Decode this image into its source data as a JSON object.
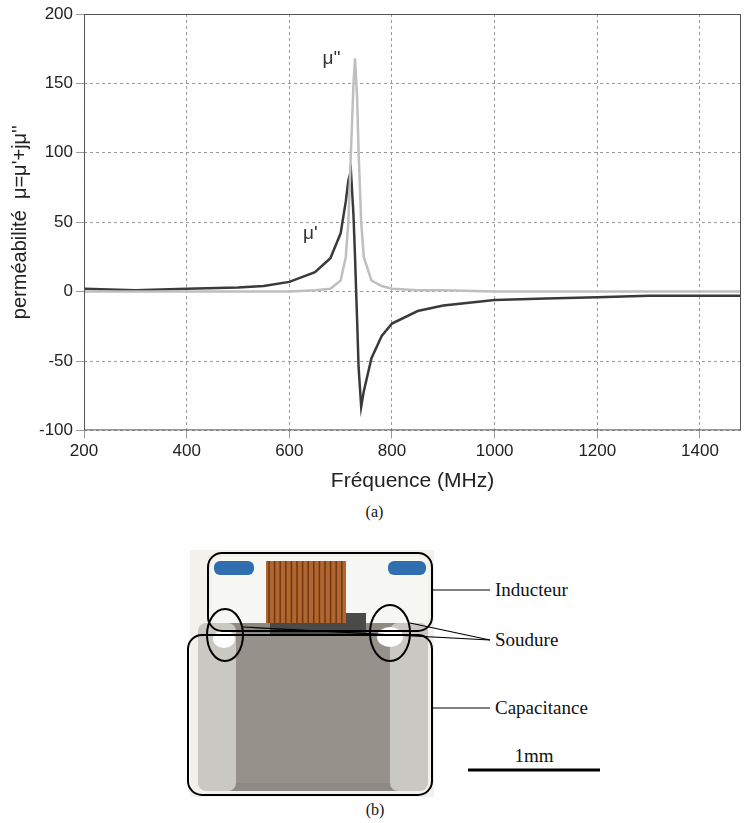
{
  "chart_data": {
    "type": "line",
    "panel_label": "(a)",
    "x_label": "Fréquence (MHz)",
    "y_label": "perméabilité  μ=μ'+jμ''",
    "x": [
      200,
      300,
      400,
      500,
      550,
      600,
      650,
      680,
      700,
      710,
      715,
      720,
      725,
      728,
      732,
      735,
      740,
      745,
      760,
      780,
      800,
      850,
      900,
      1000,
      1100,
      1200,
      1300,
      1400,
      1480
    ],
    "series": [
      {
        "name": "μ'",
        "color": "#3a3a3a",
        "values": [
          2,
          1,
          2,
          3,
          4,
          7,
          14,
          24,
          42,
          65,
          80,
          87,
          55,
          25,
          -20,
          -55,
          -83,
          -72,
          -48,
          -32,
          -23,
          -14,
          -10,
          -6,
          -5,
          -4,
          -3,
          -3,
          -3
        ]
      },
      {
        "name": "μ''",
        "color": "#bfbfbf",
        "values": [
          0,
          0,
          0,
          0,
          0,
          0,
          1,
          2,
          8,
          25,
          50,
          100,
          150,
          168,
          140,
          100,
          50,
          25,
          8,
          4,
          2,
          1,
          1,
          0,
          0,
          0,
          0,
          0,
          0
        ]
      }
    ],
    "annotations": [
      {
        "text": "μ''",
        "x": 700,
        "y": 168
      },
      {
        "text": "μ'",
        "x": 655,
        "y": 42
      }
    ],
    "xlim": [
      200,
      1480
    ],
    "xticks": [
      200,
      400,
      600,
      800,
      1000,
      1200,
      1400
    ],
    "ylim": [
      -100,
      200
    ],
    "yticks": [
      -100,
      -50,
      0,
      50,
      100,
      150,
      200
    ],
    "grid": true
  },
  "photo": {
    "panel_label": "(b)",
    "labels": [
      "Inducteur",
      "Soudure",
      "Capacitance"
    ],
    "scale_bar": "1mm"
  }
}
